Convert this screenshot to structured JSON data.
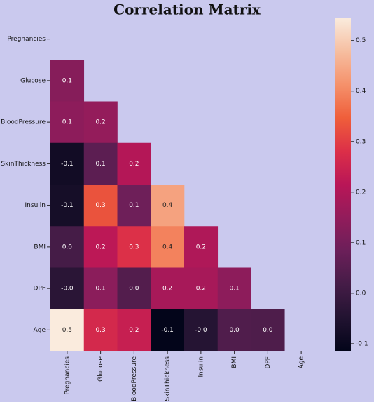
{
  "chart_data": {
    "type": "heatmap",
    "title": "Correlation Matrix",
    "categories": [
      "Pregnancies",
      "Glucose",
      "BloodPressure",
      "SkinThickness",
      "Insulin",
      "BMI",
      "DPF",
      "Age"
    ],
    "values": [
      [
        null,
        null,
        null,
        null,
        null,
        null,
        null,
        null
      ],
      [
        0.129,
        null,
        null,
        null,
        null,
        null,
        null,
        null
      ],
      [
        0.141,
        0.153,
        null,
        null,
        null,
        null,
        null,
        null
      ],
      [
        -0.082,
        0.057,
        0.207,
        null,
        null,
        null,
        null,
        null
      ],
      [
        -0.074,
        0.331,
        0.089,
        0.437,
        null,
        null,
        null,
        null
      ],
      [
        0.018,
        0.221,
        0.282,
        0.393,
        0.198,
        null,
        null,
        null
      ],
      [
        -0.034,
        0.137,
        0.041,
        0.184,
        0.185,
        0.141,
        null,
        null
      ],
      [
        0.544,
        0.264,
        0.24,
        -0.114,
        -0.042,
        0.036,
        0.034,
        null
      ]
    ],
    "value_labels": [
      [
        null,
        null,
        null,
        null,
        null,
        null,
        null,
        null
      ],
      [
        "0.1",
        null,
        null,
        null,
        null,
        null,
        null,
        null
      ],
      [
        "0.1",
        "0.2",
        null,
        null,
        null,
        null,
        null,
        null
      ],
      [
        "-0.1",
        "0.1",
        "0.2",
        null,
        null,
        null,
        null,
        null
      ],
      [
        "-0.1",
        "0.3",
        "0.1",
        "0.4",
        null,
        null,
        null,
        null
      ],
      [
        "0.0",
        "0.2",
        "0.3",
        "0.4",
        "0.2",
        null,
        null,
        null
      ],
      [
        "-0.0",
        "0.1",
        "0.0",
        "0.2",
        "0.2",
        "0.1",
        null,
        null
      ],
      [
        "0.5",
        "0.3",
        "0.2",
        "-0.1",
        "-0.0",
        "0.0",
        "0.0",
        null
      ]
    ],
    "colormap": "rocket",
    "ylim": [
      -0.114,
      0.544
    ],
    "yticks": [
      -0.1,
      {
        "value": 0,
        "label": "0.0"
      },
      0.1,
      0.2,
      0.3,
      0.4,
      0.5
    ]
  }
}
